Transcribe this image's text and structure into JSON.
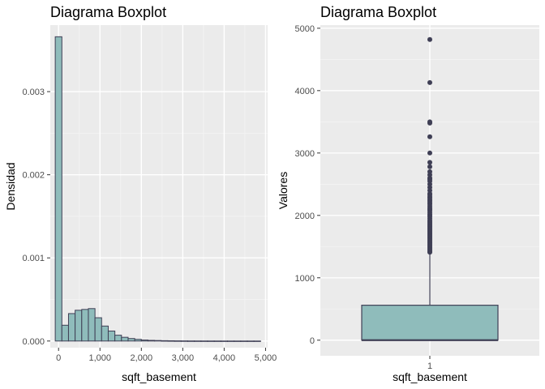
{
  "colors": {
    "panel_bg": "#ebebeb",
    "grid_major": "#ffffff",
    "grid_minor": "#f4f4f4",
    "fill": "#8fbcbb",
    "stroke": "#3f3f55",
    "tick": "#333333"
  },
  "chart_data": [
    {
      "type": "bar",
      "subtype": "histogram",
      "title": "Diagrama Boxplot",
      "xlabel": "sqft_basement",
      "ylabel": "Densidad",
      "xlim": [
        -200,
        5050
      ],
      "ylim": [
        -8e-05,
        0.0038
      ],
      "x_ticks": [
        0,
        1000,
        2000,
        3000,
        4000,
        5000
      ],
      "x_tick_labels": [
        "0",
        "1,000",
        "2,000",
        "3,000",
        "4,000",
        "5,000"
      ],
      "y_ticks": [
        0.0,
        0.001,
        0.002,
        0.003
      ],
      "y_tick_labels": [
        "0.000",
        "0.001",
        "0.002",
        "0.003"
      ],
      "bin_width": 160,
      "bin_starts": [
        -80,
        80,
        240,
        400,
        560,
        720,
        880,
        1040,
        1200,
        1360,
        1520,
        1680,
        1840,
        2000,
        2160,
        2320,
        2480,
        2640,
        2800,
        2960,
        3120,
        3280,
        3440,
        3600,
        3760,
        3920,
        4080,
        4240,
        4400,
        4560,
        4720
      ],
      "values": [
        0.00366,
        0.00019,
        0.00033,
        0.00037,
        0.00038,
        0.00039,
        0.00028,
        0.00018,
        0.00012,
        7e-05,
        4.5e-05,
        3e-05,
        2e-05,
        1.2e-05,
        8e-06,
        6e-06,
        4e-06,
        3e-06,
        2e-06,
        1.5e-06,
        1e-06,
        8e-07,
        6e-07,
        5e-07,
        4e-07,
        3e-07,
        3e-07,
        2e-07,
        2e-07,
        2e-07,
        2e-07
      ]
    },
    {
      "type": "boxplot",
      "title": "Diagrama Boxplot",
      "xlabel": "sqft_basement",
      "ylabel": "Valores",
      "x_tick_labels": [
        "1"
      ],
      "ylim": [
        -250,
        5050
      ],
      "y_ticks": [
        0,
        1000,
        2000,
        3000,
        4000,
        5000
      ],
      "y_tick_labels": [
        "0",
        "1000",
        "2000",
        "3000",
        "4000",
        "5000"
      ],
      "box": {
        "q1": 0,
        "median": 0,
        "q3": 560,
        "whisker_low": 0,
        "whisker_high": 1400
      },
      "outliers": [
        1410,
        1420,
        1440,
        1460,
        1480,
        1500,
        1520,
        1540,
        1560,
        1580,
        1600,
        1620,
        1640,
        1660,
        1680,
        1700,
        1720,
        1740,
        1760,
        1780,
        1800,
        1820,
        1840,
        1860,
        1880,
        1900,
        1920,
        1950,
        1980,
        2000,
        2020,
        2050,
        2080,
        2100,
        2120,
        2150,
        2180,
        2200,
        2230,
        2250,
        2280,
        2300,
        2330,
        2350,
        2400,
        2450,
        2500,
        2550,
        2580,
        2600,
        2650,
        2700,
        2780,
        2850,
        3000,
        3260,
        3480,
        3500,
        4130,
        4820
      ]
    }
  ]
}
